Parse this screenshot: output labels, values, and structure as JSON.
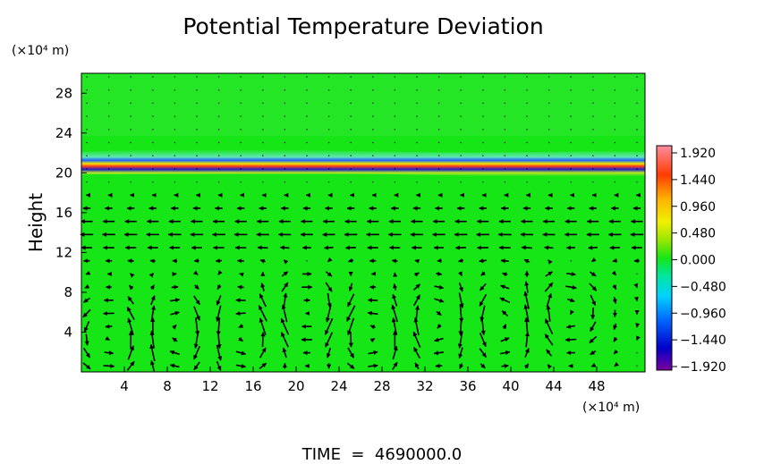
{
  "chart_data": {
    "type": "heatmap",
    "title": "Potential Temperature Deviation",
    "ylabel": "Height",
    "y_unit_label": "(×10⁴ m)",
    "x_unit_label": "(×10⁴ m)",
    "footer": "TIME  =  4690000.0",
    "x_ticks": [
      "4",
      "8",
      "12",
      "16",
      "20",
      "24",
      "28",
      "32",
      "36",
      "40",
      "44",
      "48"
    ],
    "y_ticks": [
      "4",
      "8",
      "12",
      "16",
      "20",
      "24",
      "28"
    ],
    "xlim": [
      0,
      52.5
    ],
    "ylim": [
      0,
      30
    ],
    "colorbar": {
      "ticks": [
        "1.920",
        "1.440",
        "0.960",
        "0.480",
        "0.000",
        "−0.480",
        "−0.960",
        "−1.440",
        "−1.920"
      ],
      "range": [
        -1.92,
        1.92
      ]
    },
    "field_background": "#16e616",
    "inversion_layer_height": 20.5,
    "vortex_centers": [
      {
        "x": 3,
        "y": 3.5,
        "sense": 1
      },
      {
        "x": 9,
        "y": 4,
        "sense": -1
      },
      {
        "x": 15,
        "y": 4,
        "sense": 1
      },
      {
        "x": 21,
        "y": 6,
        "sense": -1
      },
      {
        "x": 27,
        "y": 4,
        "sense": 1
      },
      {
        "x": 33,
        "y": 5,
        "sense": -1
      },
      {
        "x": 39,
        "y": 5,
        "sense": 1
      },
      {
        "x": 45,
        "y": 6,
        "sense": -1
      }
    ]
  }
}
